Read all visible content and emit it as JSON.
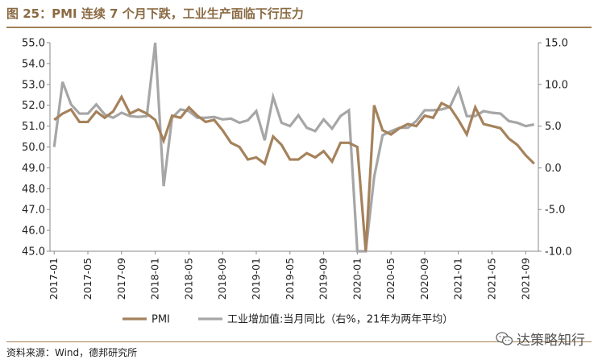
{
  "header": {
    "title": "图 25：PMI 连续 7 个月下跌，工业生产面临下行压力"
  },
  "footer": {
    "source": "资料来源：Wind，德邦研究所",
    "watermark": "达策略知行"
  },
  "colors": {
    "pmi": "#a5825c",
    "ip": "#a6a6a6",
    "brand": "#8a6a43"
  },
  "icons": {
    "watermark": "wechat-icon"
  },
  "chart_data": {
    "type": "line",
    "x": [
      "2017-01",
      "2017-02",
      "2017-03",
      "2017-04",
      "2017-05",
      "2017-06",
      "2017-07",
      "2017-08",
      "2017-09",
      "2017-10",
      "2017-11",
      "2017-12",
      "2018-01",
      "2018-02",
      "2018-03",
      "2018-04",
      "2018-05",
      "2018-06",
      "2018-07",
      "2018-08",
      "2018-09",
      "2018-10",
      "2018-11",
      "2018-12",
      "2019-01",
      "2019-02",
      "2019-03",
      "2019-04",
      "2019-05",
      "2019-06",
      "2019-07",
      "2019-08",
      "2019-09",
      "2019-10",
      "2019-11",
      "2019-12",
      "2020-01",
      "2020-02",
      "2020-03",
      "2020-04",
      "2020-05",
      "2020-06",
      "2020-07",
      "2020-08",
      "2020-09",
      "2020-10",
      "2020-11",
      "2020-12",
      "2021-01",
      "2021-02",
      "2021-03",
      "2021-04",
      "2021-05",
      "2021-06",
      "2021-07",
      "2021-08",
      "2021-09",
      "2021-10"
    ],
    "xtick_labels": [
      "2017-01",
      "2017-05",
      "2017-09",
      "2018-01",
      "2018-05",
      "2018-09",
      "2019-01",
      "2019-05",
      "2019-09",
      "2020-01",
      "2020-05",
      "2020-09",
      "2021-01",
      "2021-05",
      "2021-09"
    ],
    "series": [
      {
        "name": "PMI",
        "axis": "left",
        "values": [
          51.3,
          51.6,
          51.8,
          51.2,
          51.2,
          51.7,
          51.4,
          51.7,
          52.4,
          51.6,
          51.8,
          51.6,
          51.3,
          50.3,
          51.5,
          51.4,
          51.9,
          51.5,
          51.2,
          51.3,
          50.8,
          50.2,
          50.0,
          49.4,
          49.5,
          49.2,
          50.5,
          50.1,
          49.4,
          49.4,
          49.7,
          49.5,
          49.8,
          49.3,
          50.2,
          50.2,
          50.0,
          35.7,
          52.0,
          50.8,
          50.6,
          50.9,
          51.1,
          51.0,
          51.5,
          51.4,
          52.1,
          51.9,
          51.3,
          50.6,
          51.9,
          51.1,
          51.0,
          50.9,
          50.4,
          50.1,
          49.6,
          49.2
        ]
      },
      {
        "name": "工业增加值:当月同比（右%，21年为两年平均）",
        "axis": "right",
        "values": [
          2.5,
          10.3,
          7.6,
          6.5,
          6.5,
          7.6,
          6.4,
          6.0,
          6.6,
          6.2,
          6.1,
          6.2,
          15.0,
          -2.2,
          6.0,
          7.0,
          6.8,
          6.0,
          6.0,
          6.1,
          5.8,
          5.9,
          5.4,
          5.7,
          6.8,
          3.3,
          8.5,
          5.4,
          5.0,
          6.3,
          4.8,
          4.4,
          5.8,
          4.7,
          6.2,
          6.9,
          -10.0,
          -10.0,
          -1.1,
          3.9,
          4.4,
          4.8,
          4.8,
          5.6,
          6.9,
          6.9,
          7.0,
          7.3,
          9.5,
          6.2,
          6.2,
          6.8,
          6.6,
          6.5,
          5.6,
          5.4,
          5.0,
          5.2
        ]
      }
    ],
    "yleft": {
      "lim": [
        45.0,
        55.0
      ],
      "ticks": [
        "45.0",
        "46.0",
        "47.0",
        "48.0",
        "49.0",
        "50.0",
        "51.0",
        "52.0",
        "53.0",
        "54.0",
        "55.0"
      ]
    },
    "yright": {
      "lim": [
        -10.0,
        15.0
      ],
      "ticks": [
        "-10.0",
        "-5.0",
        "0.0",
        "5.0",
        "10.0",
        "15.0"
      ]
    },
    "legend": [
      {
        "label": "PMI",
        "color": "#a5825c"
      },
      {
        "label": "工业增加值:当月同比（右%，21年为两年平均）",
        "color": "#a6a6a6"
      }
    ],
    "legend_position": "bottom",
    "grid": false
  }
}
